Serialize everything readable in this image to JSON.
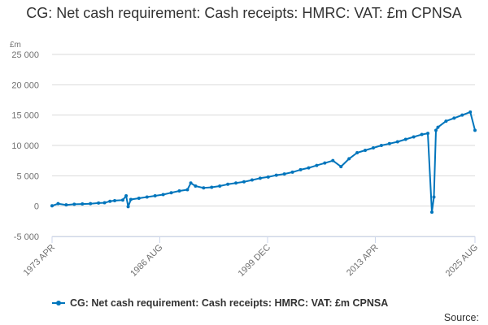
{
  "chart_data": {
    "type": "line",
    "title": "CG: Net cash requirement: Cash receipts: HMRC: VAT: £m CPNSA",
    "ylabel": "£m",
    "xlabel": "",
    "ylim": [
      -5000,
      25000
    ],
    "yticks": [
      -5000,
      0,
      5000,
      10000,
      15000,
      20000,
      25000
    ],
    "ytick_labels": [
      "-5 000",
      "0",
      "5 000",
      "10 000",
      "15 000",
      "20 000",
      "25 000"
    ],
    "xlim": [
      "1973-04",
      "2025-08"
    ],
    "xticks": [
      "1973-04",
      "1986-08",
      "1999-12",
      "2013-04",
      "2025-08"
    ],
    "xtick_labels": [
      "1973 APR",
      "1986 AUG",
      "1999 DEC",
      "2013 APR",
      "2025 AUG"
    ],
    "grid": true,
    "legend_position": "bottom",
    "series": [
      {
        "name": "CG: Net cash requirement: Cash receipts: HMRC: VAT: £m CPNSA",
        "color": "#0075bc",
        "points": [
          [
            "1973-04",
            50
          ],
          [
            "1974-01",
            400
          ],
          [
            "1975-01",
            200
          ],
          [
            "1976-01",
            300
          ],
          [
            "1977-01",
            350
          ],
          [
            "1978-01",
            400
          ],
          [
            "1979-01",
            500
          ],
          [
            "1979-10",
            550
          ],
          [
            "1980-06",
            800
          ],
          [
            "1981-01",
            900
          ],
          [
            "1982-01",
            1000
          ],
          [
            "1982-06",
            1700
          ],
          [
            "1982-09",
            -100
          ],
          [
            "1983-01",
            1100
          ],
          [
            "1984-01",
            1300
          ],
          [
            "1985-01",
            1500
          ],
          [
            "1986-01",
            1700
          ],
          [
            "1987-01",
            1900
          ],
          [
            "1988-01",
            2200
          ],
          [
            "1989-01",
            2500
          ],
          [
            "1990-01",
            2700
          ],
          [
            "1990-06",
            3800
          ],
          [
            "1991-01",
            3300
          ],
          [
            "1992-01",
            3000
          ],
          [
            "1993-01",
            3100
          ],
          [
            "1994-01",
            3300
          ],
          [
            "1995-01",
            3600
          ],
          [
            "1996-01",
            3800
          ],
          [
            "1997-01",
            4000
          ],
          [
            "1998-01",
            4300
          ],
          [
            "1999-01",
            4600
          ],
          [
            "2000-01",
            4800
          ],
          [
            "2001-01",
            5100
          ],
          [
            "2002-01",
            5300
          ],
          [
            "2003-01",
            5600
          ],
          [
            "2004-01",
            6000
          ],
          [
            "2005-01",
            6300
          ],
          [
            "2006-01",
            6700
          ],
          [
            "2007-01",
            7100
          ],
          [
            "2008-01",
            7500
          ],
          [
            "2009-01",
            6500
          ],
          [
            "2010-01",
            7800
          ],
          [
            "2011-01",
            8800
          ],
          [
            "2012-01",
            9200
          ],
          [
            "2013-01",
            9600
          ],
          [
            "2014-01",
            10000
          ],
          [
            "2015-01",
            10300
          ],
          [
            "2016-01",
            10600
          ],
          [
            "2017-01",
            11000
          ],
          [
            "2018-01",
            11400
          ],
          [
            "2019-01",
            11800
          ],
          [
            "2019-10",
            12000
          ],
          [
            "2020-04",
            -1000
          ],
          [
            "2020-07",
            1500
          ],
          [
            "2020-10",
            12500
          ],
          [
            "2021-01",
            13000
          ],
          [
            "2022-01",
            14000
          ],
          [
            "2023-01",
            14500
          ],
          [
            "2024-01",
            15000
          ],
          [
            "2025-01",
            15500
          ],
          [
            "2025-08",
            12500
          ]
        ]
      }
    ],
    "source_label": "Source:"
  }
}
